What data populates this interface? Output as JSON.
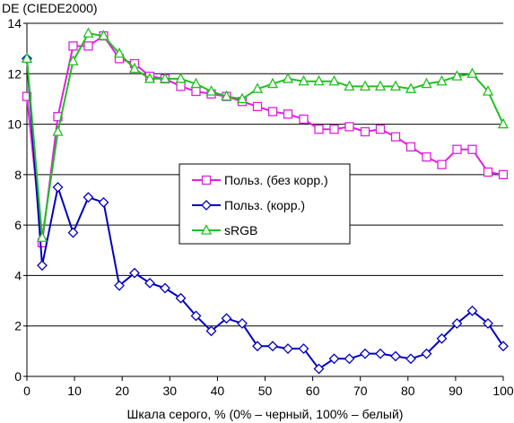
{
  "chart_data": {
    "type": "line",
    "title": "",
    "ylabel": "DE (CIEDE2000)",
    "xlabel": "Шкала серого, % (0% – черный, 100% – белый)",
    "xlim": [
      0,
      100
    ],
    "ylim": [
      0,
      14
    ],
    "xticks": [
      "0",
      "10",
      "20",
      "30",
      "40",
      "50",
      "60",
      "70",
      "80",
      "90",
      "100"
    ],
    "yticks": [
      "0",
      "2",
      "4",
      "6",
      "8",
      "10",
      "12",
      "14"
    ],
    "grid": "horizontal",
    "legend_position": "center-left",
    "x": [
      0,
      3.2,
      6.5,
      9.7,
      12.9,
      16.1,
      19.4,
      22.6,
      25.8,
      29.0,
      32.3,
      35.5,
      38.7,
      41.9,
      45.2,
      48.4,
      51.6,
      54.8,
      58.1,
      61.3,
      64.5,
      67.7,
      71.0,
      74.2,
      77.4,
      80.6,
      83.9,
      87.1,
      90.3,
      93.5,
      96.8,
      100
    ],
    "series": [
      {
        "name": "Польз. (без корр.)",
        "color": "#e020e0",
        "marker": "square",
        "values": [
          11.1,
          5.3,
          10.3,
          13.1,
          13.1,
          13.5,
          12.6,
          12.4,
          11.9,
          11.8,
          11.5,
          11.3,
          11.2,
          11.1,
          10.9,
          10.7,
          10.5,
          10.4,
          10.2,
          9.8,
          9.8,
          9.9,
          9.7,
          9.8,
          9.5,
          9.1,
          8.7,
          8.4,
          9.0,
          9.0,
          8.1,
          8.0
        ]
      },
      {
        "name": "Польз. (корр.)",
        "color": "#0000c0",
        "marker": "diamond",
        "values": [
          12.6,
          4.4,
          7.5,
          5.7,
          7.1,
          6.9,
          3.6,
          4.1,
          3.7,
          3.5,
          3.1,
          2.4,
          1.8,
          2.3,
          2.1,
          1.2,
          1.2,
          1.1,
          1.1,
          0.3,
          0.7,
          0.7,
          0.9,
          0.9,
          0.8,
          0.7,
          0.9,
          1.5,
          2.1,
          2.6,
          2.1,
          1.2
        ]
      },
      {
        "name": "sRGB",
        "color": "#20c020",
        "marker": "triangle",
        "values": [
          12.6,
          5.5,
          9.7,
          12.5,
          13.6,
          13.5,
          12.8,
          12.2,
          11.8,
          11.8,
          11.8,
          11.6,
          11.3,
          11.1,
          11.0,
          11.4,
          11.6,
          11.8,
          11.7,
          11.7,
          11.7,
          11.5,
          11.5,
          11.5,
          11.5,
          11.4,
          11.6,
          11.7,
          11.9,
          12.0,
          11.3,
          10.0
        ]
      }
    ]
  }
}
